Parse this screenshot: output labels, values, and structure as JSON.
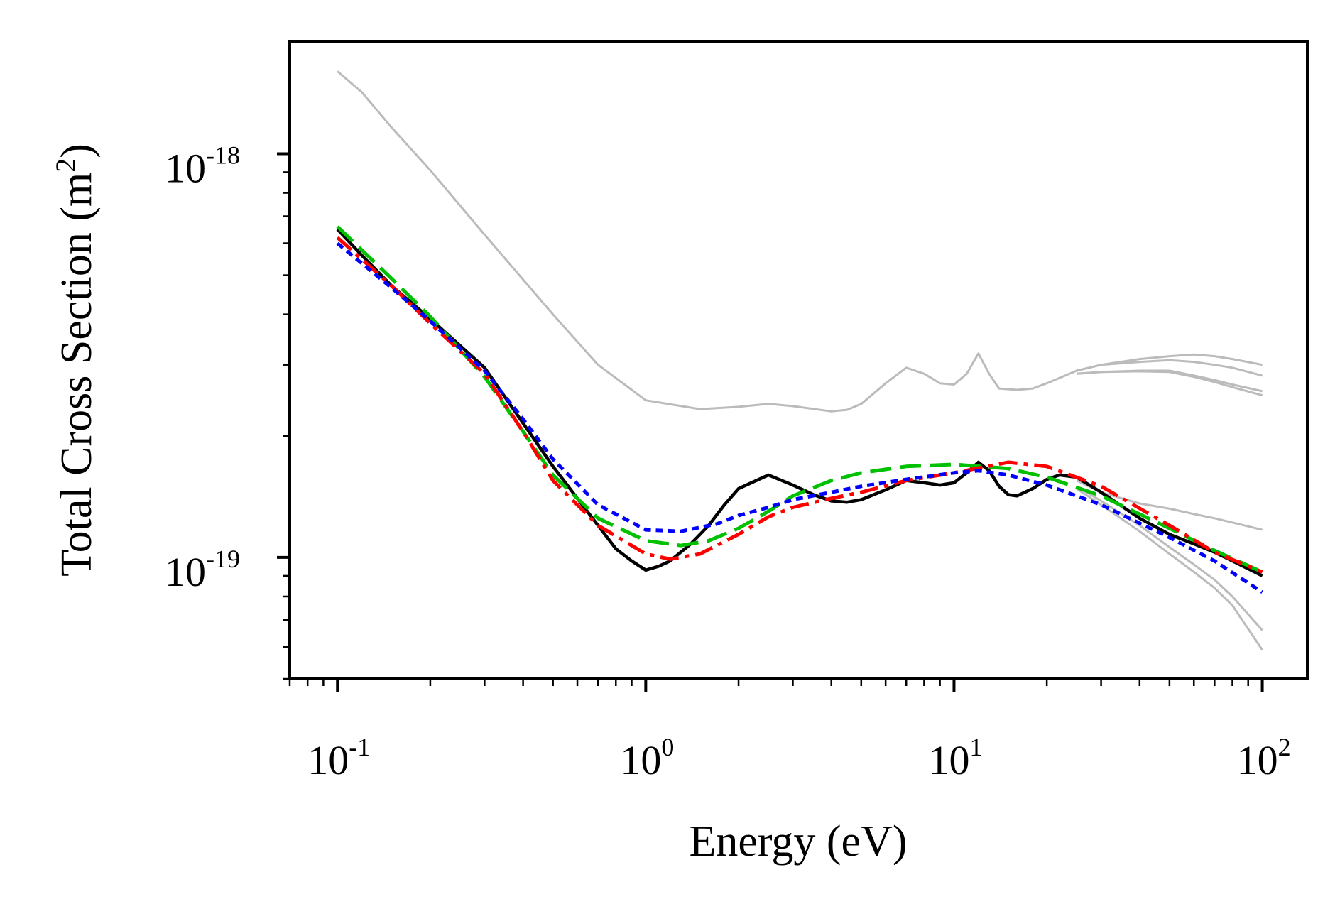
{
  "chart_data": {
    "type": "line",
    "xlabel": "Energy (eV)",
    "ylabel": "Total Cross Section (m",
    "ylabel_sup": "2",
    "ylabel_close": ")",
    "x_scale": "log",
    "y_scale": "log",
    "xlim": [
      0.07,
      140
    ],
    "ylim": [
      5e-20,
      1.9e-18
    ],
    "x_major_ticks": [
      {
        "value": 0.1,
        "base": "10",
        "exp": "-1"
      },
      {
        "value": 1,
        "base": "10",
        "exp": "0"
      },
      {
        "value": 10,
        "base": "10",
        "exp": "1"
      },
      {
        "value": 100,
        "base": "10",
        "exp": "2"
      }
    ],
    "y_major_ticks": [
      {
        "value": 1e-19,
        "base": "10",
        "exp": "-19"
      },
      {
        "value": 1e-18,
        "base": "10",
        "exp": "-18"
      }
    ],
    "grid": false,
    "series": [
      {
        "style": "gray-solid",
        "color": "#bbbbbb",
        "x": [
          0.1,
          0.12,
          0.15,
          0.2,
          0.3,
          0.5,
          0.7,
          1.0,
          1.5,
          2.0,
          2.5,
          3.0,
          4.0,
          4.5,
          5.0,
          6.0,
          7.0,
          8.0,
          9.0,
          10.0,
          11.0,
          12.0,
          13.0,
          14.0,
          16.0,
          18.0,
          20.0,
          25.0,
          30.0,
          40.0,
          50.0,
          60.0,
          70.0,
          80.0,
          100.0
        ],
        "y": [
          1.6e-18,
          1.42e-18,
          1.16e-18,
          9.1e-19,
          6.3e-19,
          4e-19,
          3e-19,
          2.45e-19,
          2.33e-19,
          2.36e-19,
          2.4e-19,
          2.37e-19,
          2.3e-19,
          2.32e-19,
          2.4e-19,
          2.7e-19,
          2.95e-19,
          2.85e-19,
          2.7e-19,
          2.68e-19,
          2.85e-19,
          3.2e-19,
          2.85e-19,
          2.62e-19,
          2.6e-19,
          2.62e-19,
          2.7e-19,
          2.9e-19,
          3e-19,
          3.1e-19,
          3.15e-19,
          3.18e-19,
          3.15e-19,
          3.1e-19,
          3e-19
        ]
      },
      {
        "style": "gray-solid",
        "color": "#bbbbbb",
        "x": [
          25.0,
          30.0,
          40.0,
          50.0,
          60.0,
          70.0,
          80.0,
          100.0
        ],
        "y": [
          2.9e-19,
          3e-19,
          3.05e-19,
          3.08e-19,
          3.05e-19,
          3e-19,
          2.95e-19,
          2.82e-19
        ]
      },
      {
        "style": "gray-solid",
        "color": "#bbbbbb",
        "x": [
          25.0,
          30.0,
          40.0,
          50.0,
          60.0,
          70.0,
          80.0,
          100.0
        ],
        "y": [
          2.85e-19,
          2.88e-19,
          2.9e-19,
          2.9e-19,
          2.82e-19,
          2.75e-19,
          2.68e-19,
          2.58e-19
        ]
      },
      {
        "style": "gray-solid",
        "color": "#bbbbbb",
        "x": [
          25.0,
          30.0,
          40.0,
          50.0,
          60.0,
          70.0,
          80.0,
          100.0
        ],
        "y": [
          2.85e-19,
          2.88e-19,
          2.89e-19,
          2.88e-19,
          2.8e-19,
          2.72e-19,
          2.64e-19,
          2.52e-19
        ]
      },
      {
        "style": "gray-solid",
        "color": "#bbbbbb",
        "x": [
          25.0,
          30.0,
          35.0,
          40.0,
          50.0,
          60.0,
          70.0,
          80.0,
          100.0
        ],
        "y": [
          1.55e-19,
          1.45e-19,
          1.4e-19,
          1.36e-19,
          1.32e-19,
          1.28e-19,
          1.25e-19,
          1.22e-19,
          1.17e-19
        ]
      },
      {
        "style": "gray-solid",
        "color": "#bbbbbb",
        "x": [
          25.0,
          30.0,
          40.0,
          50.0,
          60.0,
          70.0,
          80.0,
          100.0
        ],
        "y": [
          1.5e-19,
          1.38e-19,
          1.2e-19,
          1.06e-19,
          9.6e-20,
          8.8e-20,
          8e-20,
          6.6e-20
        ]
      },
      {
        "style": "gray-solid",
        "color": "#bbbbbb",
        "x": [
          25.0,
          30.0,
          40.0,
          50.0,
          60.0,
          70.0,
          80.0,
          100.0
        ],
        "y": [
          1.48e-19,
          1.35e-19,
          1.16e-19,
          1.02e-19,
          9.2e-20,
          8.4e-20,
          7.6e-20,
          5.9e-20
        ]
      },
      {
        "style": "black-solid",
        "color": "#000000",
        "x": [
          0.1,
          0.12,
          0.15,
          0.2,
          0.3,
          0.4,
          0.5,
          0.6,
          0.7,
          0.8,
          0.9,
          1.0,
          1.1,
          1.2,
          1.4,
          1.6,
          1.8,
          2.0,
          2.5,
          3.0,
          3.5,
          4.0,
          4.5,
          5.0,
          6.0,
          7.0,
          8.0,
          9.0,
          10.0,
          11.0,
          12.0,
          13.0,
          14.0,
          15.0,
          16.0,
          18.0,
          20.0,
          22.0,
          25.0,
          30.0,
          40.0,
          50.0,
          60.0,
          70.0,
          80.0,
          100.0
        ],
        "y": [
          6.5e-19,
          5.6e-19,
          4.7e-19,
          3.9e-19,
          2.95e-19,
          2.15e-19,
          1.68e-19,
          1.4e-19,
          1.2e-19,
          1.05e-19,
          9.8e-20,
          9.3e-20,
          9.5e-20,
          9.8e-20,
          1.08e-19,
          1.2e-19,
          1.35e-19,
          1.48e-19,
          1.6e-19,
          1.51e-19,
          1.43e-19,
          1.38e-19,
          1.37e-19,
          1.39e-19,
          1.47e-19,
          1.55e-19,
          1.53e-19,
          1.51e-19,
          1.53e-19,
          1.62e-19,
          1.72e-19,
          1.64e-19,
          1.5e-19,
          1.43e-19,
          1.42e-19,
          1.48e-19,
          1.56e-19,
          1.6e-19,
          1.58e-19,
          1.45e-19,
          1.25e-19,
          1.14e-19,
          1.08e-19,
          1.03e-19,
          9.8e-20,
          9e-20
        ]
      },
      {
        "style": "green-dashed",
        "color": "#00c000",
        "x": [
          0.1,
          0.15,
          0.2,
          0.3,
          0.4,
          0.5,
          0.7,
          1.0,
          1.3,
          1.6,
          2.0,
          2.5,
          3.0,
          4.0,
          5.0,
          7.0,
          10.0,
          15.0,
          20.0,
          30.0,
          50.0,
          70.0,
          100.0
        ],
        "y": [
          6.6e-19,
          4.9e-19,
          3.95e-19,
          2.8e-19,
          2.05e-19,
          1.6e-19,
          1.25e-19,
          1.1e-19,
          1.07e-19,
          1.1e-19,
          1.18e-19,
          1.3e-19,
          1.42e-19,
          1.55e-19,
          1.62e-19,
          1.68e-19,
          1.7e-19,
          1.66e-19,
          1.58e-19,
          1.42e-19,
          1.18e-19,
          1.04e-19,
          9.2e-20
        ]
      },
      {
        "style": "red-dashdot",
        "color": "#ff0000",
        "x": [
          0.1,
          0.15,
          0.2,
          0.3,
          0.4,
          0.5,
          0.7,
          1.0,
          1.2,
          1.5,
          2.0,
          2.5,
          3.0,
          4.0,
          5.0,
          7.0,
          10.0,
          15.0,
          20.0,
          30.0,
          50.0,
          70.0,
          100.0
        ],
        "y": [
          6.2e-19,
          4.7e-19,
          3.8e-19,
          2.85e-19,
          2.05e-19,
          1.55e-19,
          1.2e-19,
          1.02e-19,
          9.9e-20,
          1.02e-19,
          1.14e-19,
          1.26e-19,
          1.33e-19,
          1.4e-19,
          1.45e-19,
          1.55e-19,
          1.62e-19,
          1.72e-19,
          1.68e-19,
          1.5e-19,
          1.2e-19,
          1.03e-19,
          9.2e-20
        ]
      },
      {
        "style": "blue-dotted",
        "color": "#0000ff",
        "x": [
          0.1,
          0.15,
          0.2,
          0.3,
          0.4,
          0.5,
          0.7,
          1.0,
          1.3,
          1.7,
          2.0,
          2.5,
          3.0,
          4.0,
          5.0,
          7.0,
          10.0,
          12.0,
          15.0,
          20.0,
          30.0,
          50.0,
          70.0,
          100.0
        ],
        "y": [
          6e-19,
          4.65e-19,
          3.85e-19,
          2.9e-19,
          2.2e-19,
          1.75e-19,
          1.35e-19,
          1.17e-19,
          1.16e-19,
          1.21e-19,
          1.27e-19,
          1.33e-19,
          1.39e-19,
          1.45e-19,
          1.5e-19,
          1.56e-19,
          1.62e-19,
          1.64e-19,
          1.6e-19,
          1.51e-19,
          1.35e-19,
          1.12e-19,
          9.8e-20,
          8.2e-20
        ]
      }
    ]
  }
}
